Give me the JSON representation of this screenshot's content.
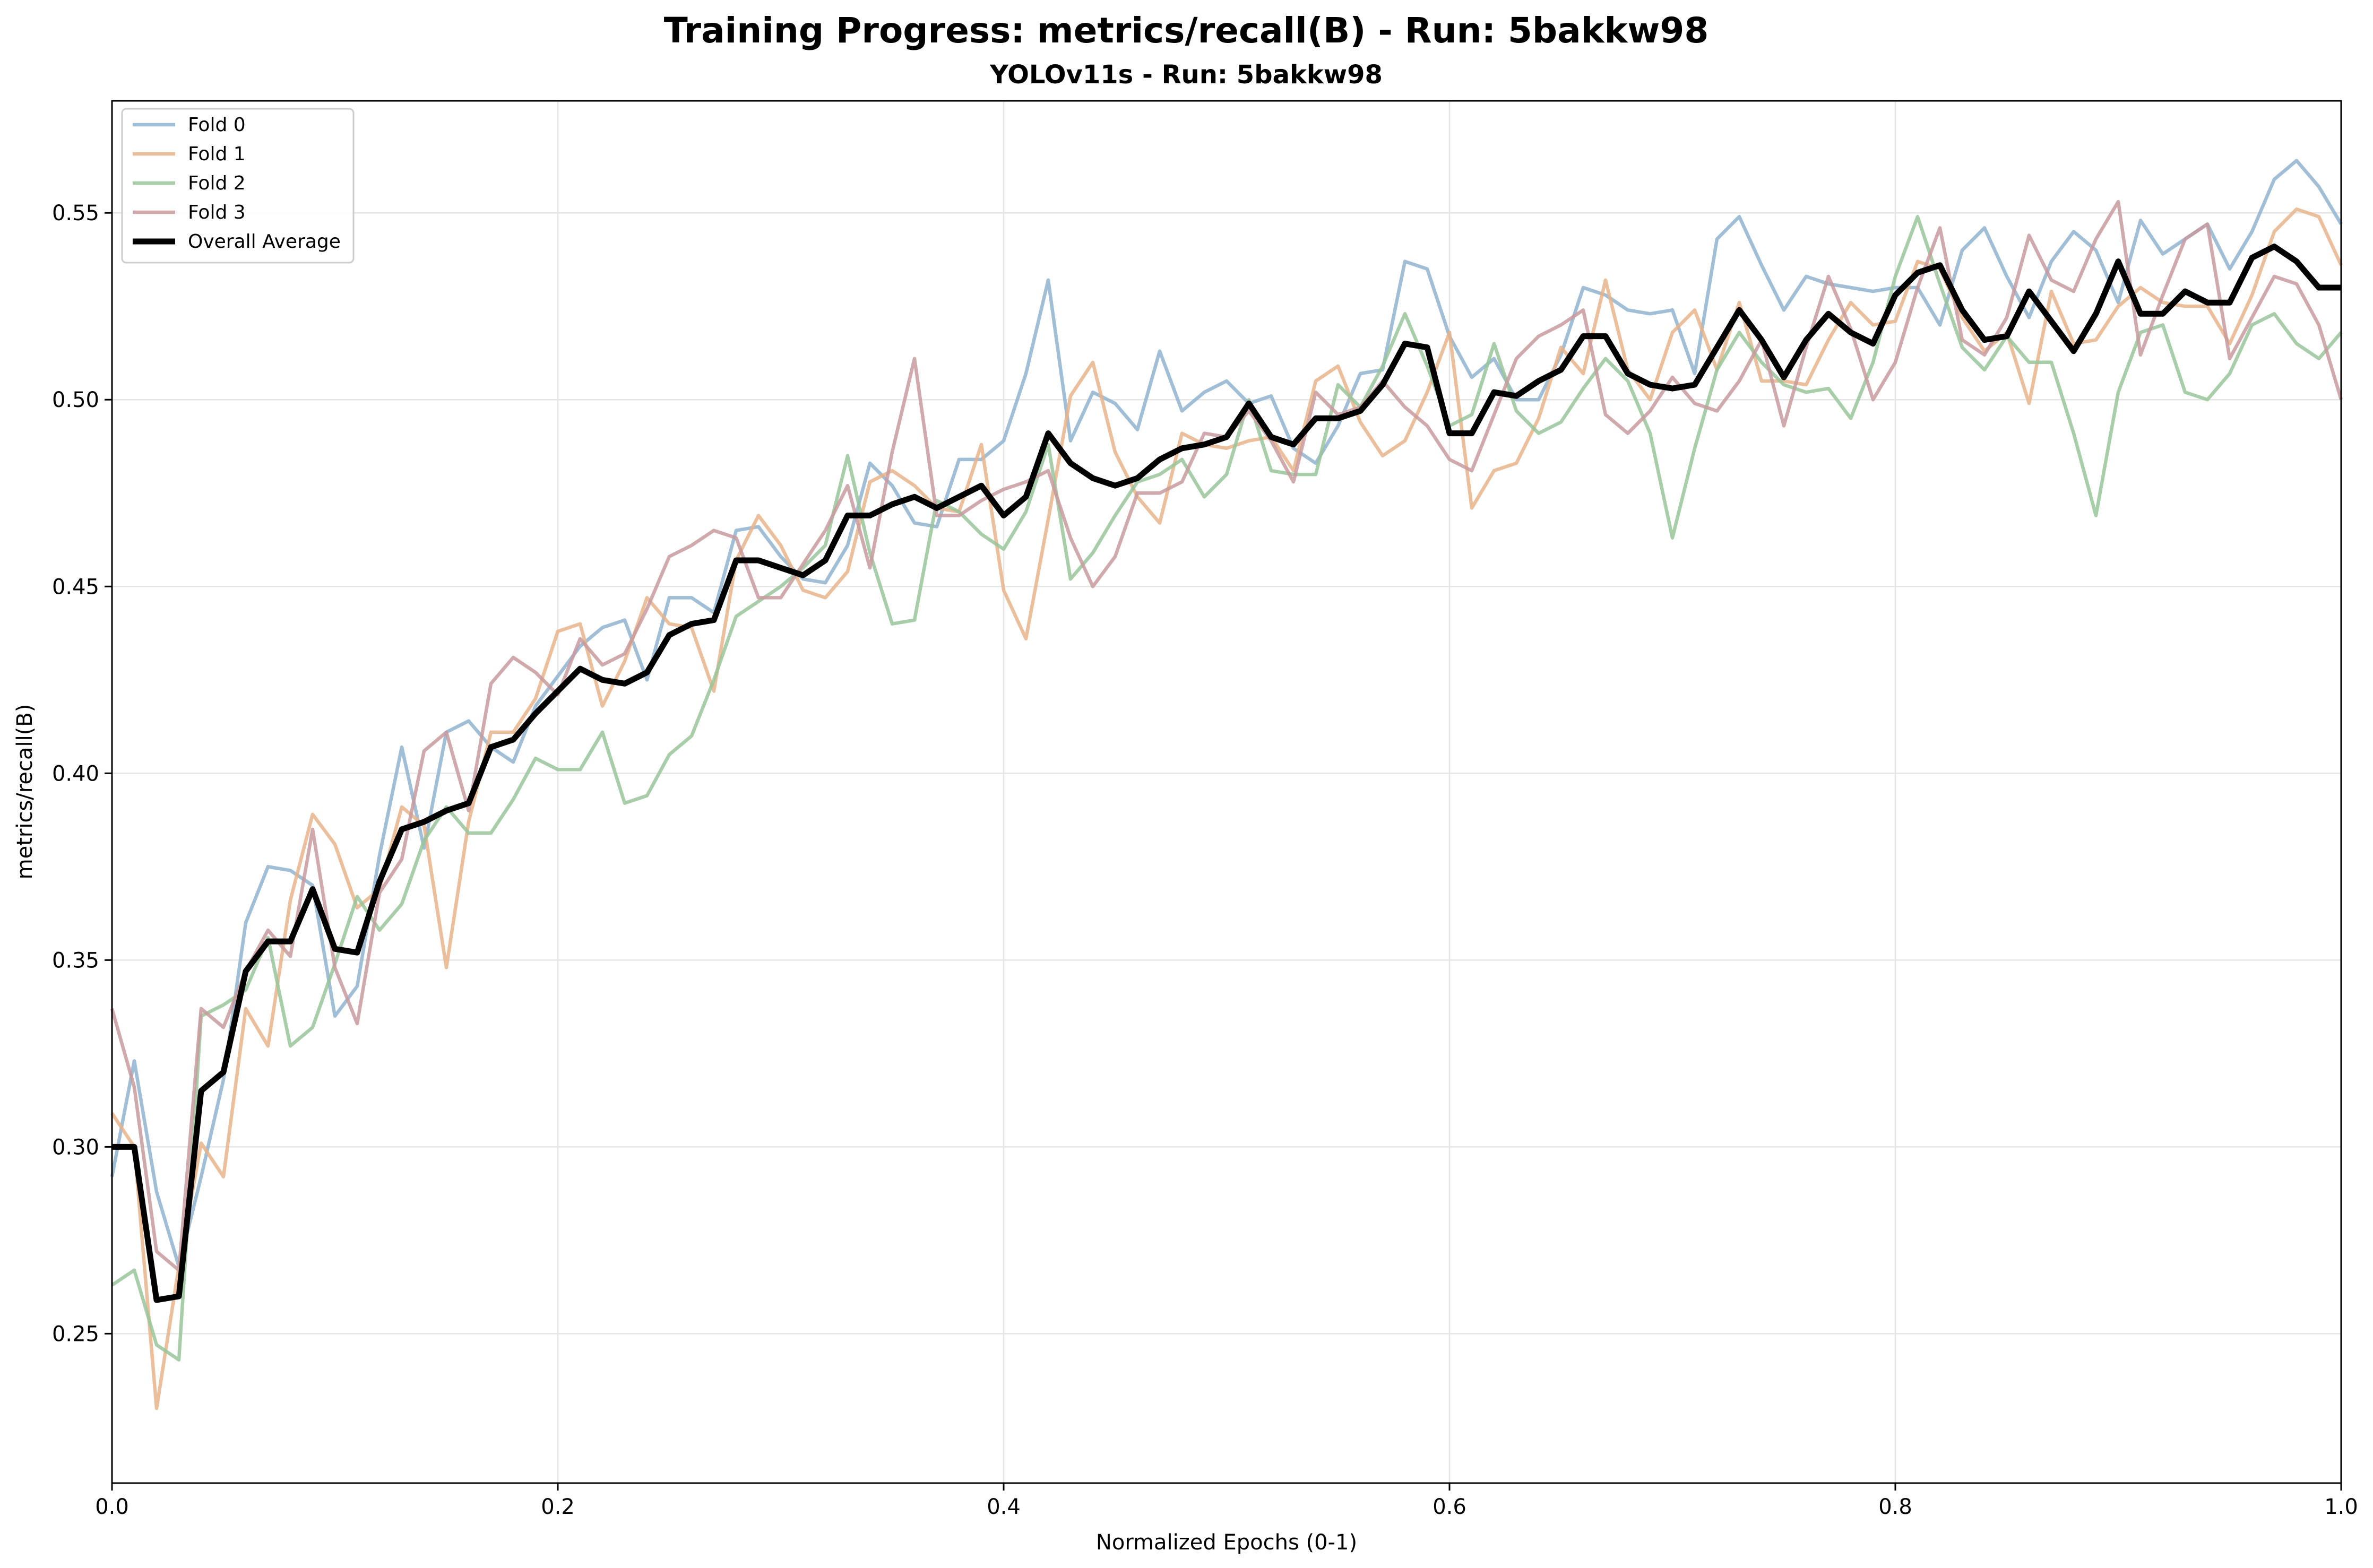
{
  "chart_data": {
    "type": "line",
    "title": "Training Progress: metrics/recall(B) - Run: 5bakkw98",
    "subtitle": "YOLOv11s - Run: 5bakkw98",
    "xlabel": "Normalized Epochs (0-1)",
    "ylabel": "metrics/recall(B)",
    "xlim": [
      0,
      1
    ],
    "ylim": [
      0.21,
      0.58
    ],
    "grid": true,
    "legend_position": "top-left",
    "x_ticks": [
      {
        "value": 0.0,
        "label": "0.0"
      },
      {
        "value": 0.2,
        "label": "0.2"
      },
      {
        "value": 0.4,
        "label": "0.4"
      },
      {
        "value": 0.6,
        "label": "0.6"
      },
      {
        "value": 0.8,
        "label": "0.8"
      },
      {
        "value": 1.0,
        "label": "1.0"
      }
    ],
    "y_ticks": [
      {
        "value": 0.25,
        "label": "0.25"
      },
      {
        "value": 0.3,
        "label": "0.30"
      },
      {
        "value": 0.35,
        "label": "0.35"
      },
      {
        "value": 0.4,
        "label": "0.40"
      },
      {
        "value": 0.45,
        "label": "0.45"
      },
      {
        "value": 0.5,
        "label": "0.50"
      },
      {
        "value": 0.55,
        "label": "0.55"
      }
    ],
    "x_start": 0,
    "x_step": 0.01,
    "series": [
      {
        "name": "Fold 0",
        "color": "#8fb3cf",
        "values": [
          0.292,
          0.323,
          0.288,
          0.268,
          0.292,
          0.318,
          0.36,
          0.375,
          0.374,
          0.37,
          0.335,
          0.343,
          0.378,
          0.407,
          0.38,
          0.411,
          0.414,
          0.407,
          0.403,
          0.418,
          0.426,
          0.434,
          0.439,
          0.441,
          0.425,
          0.447,
          0.447,
          0.443,
          0.465,
          0.466,
          0.458,
          0.452,
          0.451,
          0.461,
          0.483,
          0.477,
          0.467,
          0.466,
          0.484,
          0.484,
          0.489,
          0.507,
          0.532,
          0.489,
          0.502,
          0.499,
          0.492,
          0.513,
          0.497,
          0.502,
          0.505,
          0.499,
          0.501,
          0.487,
          0.483,
          0.493,
          0.507,
          0.508,
          0.537,
          0.535,
          0.517,
          0.506,
          0.511,
          0.5,
          0.5,
          0.512,
          0.53,
          0.528,
          0.524,
          0.523,
          0.524,
          0.507,
          0.543,
          0.549,
          0.536,
          0.524,
          0.533,
          0.531,
          0.53,
          0.529,
          0.53,
          0.53,
          0.52,
          0.54,
          0.546,
          0.533,
          0.522,
          0.537,
          0.545,
          0.54,
          0.526,
          0.548,
          0.539,
          0.543,
          0.547,
          0.535,
          0.545,
          0.559,
          0.564,
          0.557,
          0.547
        ]
      },
      {
        "name": "Fold 1",
        "color": "#e8b48a",
        "values": [
          0.309,
          0.3,
          0.23,
          0.268,
          0.301,
          0.292,
          0.337,
          0.327,
          0.366,
          0.389,
          0.381,
          0.364,
          0.369,
          0.391,
          0.386,
          0.348,
          0.387,
          0.411,
          0.411,
          0.42,
          0.438,
          0.44,
          0.418,
          0.43,
          0.447,
          0.44,
          0.439,
          0.422,
          0.457,
          0.469,
          0.461,
          0.449,
          0.447,
          0.454,
          0.478,
          0.481,
          0.477,
          0.471,
          0.47,
          0.488,
          0.449,
          0.436,
          0.468,
          0.501,
          0.51,
          0.486,
          0.474,
          0.467,
          0.491,
          0.488,
          0.487,
          0.489,
          0.49,
          0.481,
          0.505,
          0.509,
          0.494,
          0.485,
          0.489,
          0.502,
          0.518,
          0.471,
          0.481,
          0.483,
          0.495,
          0.514,
          0.507,
          0.532,
          0.508,
          0.5,
          0.518,
          0.524,
          0.508,
          0.526,
          0.505,
          0.505,
          0.504,
          0.516,
          0.526,
          0.52,
          0.521,
          0.537,
          0.535,
          0.522,
          0.513,
          0.518,
          0.499,
          0.529,
          0.515,
          0.516,
          0.525,
          0.53,
          0.526,
          0.525,
          0.525,
          0.515,
          0.528,
          0.545,
          0.551,
          0.549,
          0.536
        ]
      },
      {
        "name": "Fold 2",
        "color": "#98c49a",
        "values": [
          0.263,
          0.267,
          0.247,
          0.243,
          0.335,
          0.338,
          0.342,
          0.356,
          0.327,
          0.332,
          0.349,
          0.367,
          0.358,
          0.365,
          0.382,
          0.391,
          0.384,
          0.384,
          0.393,
          0.404,
          0.401,
          0.401,
          0.411,
          0.392,
          0.394,
          0.405,
          0.41,
          0.425,
          0.442,
          0.446,
          0.45,
          0.455,
          0.461,
          0.485,
          0.459,
          0.44,
          0.441,
          0.473,
          0.47,
          0.464,
          0.46,
          0.47,
          0.488,
          0.452,
          0.459,
          0.469,
          0.478,
          0.48,
          0.484,
          0.474,
          0.48,
          0.5,
          0.481,
          0.48,
          0.48,
          0.504,
          0.498,
          0.509,
          0.523,
          0.509,
          0.493,
          0.496,
          0.515,
          0.497,
          0.491,
          0.494,
          0.503,
          0.511,
          0.505,
          0.491,
          0.463,
          0.487,
          0.508,
          0.518,
          0.51,
          0.504,
          0.502,
          0.503,
          0.495,
          0.51,
          0.533,
          0.549,
          0.531,
          0.514,
          0.508,
          0.517,
          0.51,
          0.51,
          0.491,
          0.469,
          0.502,
          0.518,
          0.52,
          0.502,
          0.5,
          0.507,
          0.52,
          0.523,
          0.515,
          0.511,
          0.518
        ]
      },
      {
        "name": "Fold 3",
        "color": "#c89a9e",
        "values": [
          0.337,
          0.316,
          0.272,
          0.267,
          0.337,
          0.332,
          0.347,
          0.358,
          0.351,
          0.385,
          0.348,
          0.333,
          0.368,
          0.377,
          0.406,
          0.411,
          0.39,
          0.424,
          0.431,
          0.427,
          0.421,
          0.436,
          0.429,
          0.432,
          0.444,
          0.458,
          0.461,
          0.465,
          0.463,
          0.447,
          0.447,
          0.456,
          0.465,
          0.477,
          0.455,
          0.486,
          0.511,
          0.469,
          0.469,
          0.473,
          0.476,
          0.478,
          0.481,
          0.463,
          0.45,
          0.458,
          0.475,
          0.475,
          0.478,
          0.491,
          0.49,
          0.497,
          0.489,
          0.478,
          0.502,
          0.496,
          0.498,
          0.505,
          0.498,
          0.493,
          0.484,
          0.481,
          0.496,
          0.511,
          0.517,
          0.52,
          0.524,
          0.496,
          0.491,
          0.497,
          0.506,
          0.499,
          0.497,
          0.505,
          0.516,
          0.493,
          0.514,
          0.533,
          0.519,
          0.5,
          0.51,
          0.53,
          0.546,
          0.516,
          0.512,
          0.522,
          0.544,
          0.532,
          0.529,
          0.543,
          0.553,
          0.512,
          0.528,
          0.543,
          0.547,
          0.511,
          0.522,
          0.533,
          0.531,
          0.52,
          0.5
        ]
      },
      {
        "name": "Overall Average",
        "color": "#000000",
        "emphasis": true,
        "values": [
          0.3,
          0.3,
          0.259,
          0.26,
          0.315,
          0.32,
          0.347,
          0.355,
          0.355,
          0.369,
          0.353,
          0.352,
          0.371,
          0.385,
          0.387,
          0.39,
          0.392,
          0.407,
          0.409,
          0.416,
          0.422,
          0.428,
          0.425,
          0.424,
          0.427,
          0.437,
          0.44,
          0.441,
          0.457,
          0.457,
          0.455,
          0.453,
          0.457,
          0.469,
          0.469,
          0.472,
          0.474,
          0.471,
          0.474,
          0.477,
          0.469,
          0.474,
          0.491,
          0.483,
          0.479,
          0.477,
          0.479,
          0.484,
          0.487,
          0.488,
          0.49,
          0.499,
          0.49,
          0.488,
          0.495,
          0.495,
          0.497,
          0.504,
          0.515,
          0.514,
          0.491,
          0.491,
          0.502,
          0.501,
          0.505,
          0.508,
          0.517,
          0.517,
          0.507,
          0.504,
          0.503,
          0.504,
          0.514,
          0.524,
          0.516,
          0.506,
          0.516,
          0.523,
          0.518,
          0.515,
          0.528,
          0.534,
          0.536,
          0.524,
          0.516,
          0.517,
          0.529,
          0.521,
          0.513,
          0.523,
          0.537,
          0.523,
          0.523,
          0.529,
          0.526,
          0.526,
          0.538,
          0.541,
          0.537,
          0.53,
          0.53
        ]
      }
    ]
  }
}
